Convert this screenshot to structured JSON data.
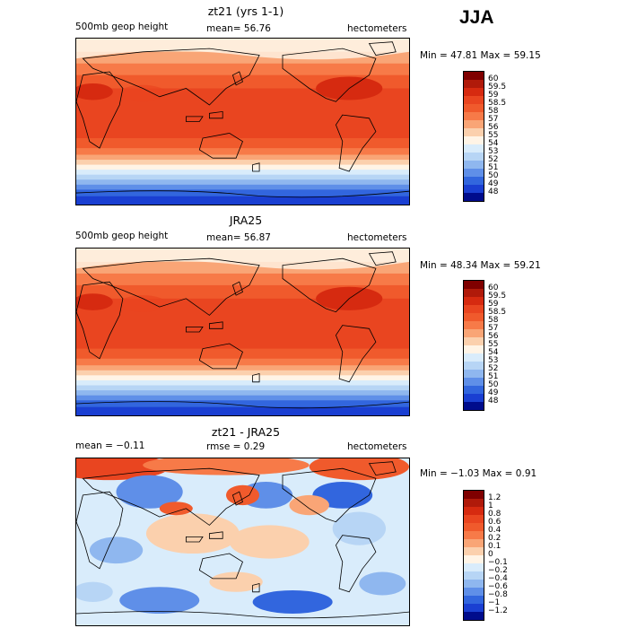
{
  "season": "JJA",
  "panels": [
    {
      "id": "model",
      "title": "zt21 (yrs 1-1)",
      "left_text": "500mb geop height",
      "stat_text": "mean=  56.76",
      "units": "hectometers",
      "min_text": "Min =  47.81",
      "max_text": "Max =  59.15",
      "kind": "field",
      "colorbar": {
        "labels": [
          "60",
          "59.5",
          "59",
          "58.5",
          "58",
          "57",
          "56",
          "55",
          "54",
          "53",
          "52",
          "51",
          "50",
          "49",
          "48"
        ],
        "colors": [
          "#7f0000",
          "#b01a0a",
          "#d62a10",
          "#e94520",
          "#f05a2c",
          "#f77a48",
          "#f9a576",
          "#fbd0ad",
          "#fff4e6",
          "#d9ecfb",
          "#b7d5f5",
          "#8fb7ef",
          "#5f8fe8",
          "#3266de",
          "#1a3fd2",
          "#000c8c"
        ]
      }
    },
    {
      "id": "obs",
      "title": "JRA25",
      "left_text": "500mb geop height",
      "stat_text": "mean=  56.87",
      "units": "hectometers",
      "min_text": "Min =  48.34",
      "max_text": "Max =  59.21",
      "kind": "field",
      "colorbar": {
        "labels": [
          "60",
          "59.5",
          "59",
          "58.5",
          "58",
          "57",
          "56",
          "55",
          "54",
          "53",
          "52",
          "51",
          "50",
          "49",
          "48"
        ],
        "colors": [
          "#7f0000",
          "#b01a0a",
          "#d62a10",
          "#e94520",
          "#f05a2c",
          "#f77a48",
          "#f9a576",
          "#fbd0ad",
          "#fff4e6",
          "#d9ecfb",
          "#b7d5f5",
          "#8fb7ef",
          "#5f8fe8",
          "#3266de",
          "#1a3fd2",
          "#000c8c"
        ]
      }
    },
    {
      "id": "diff",
      "title": "zt21 - JRA25",
      "left_text": "mean =  −0.11",
      "stat_text": "rmse =    0.29",
      "units": "hectometers",
      "min_text": "Min = −1.03",
      "max_text": "Max =    0.91",
      "kind": "diff",
      "colorbar": {
        "labels": [
          "1.2",
          "1",
          "0.8",
          "0.6",
          "0.4",
          "0.2",
          "0.1",
          "0",
          "−0.1",
          "−0.2",
          "−0.4",
          "−0.6",
          "−0.8",
          "−1",
          "−1.2"
        ],
        "colors": [
          "#7f0000",
          "#b01a0a",
          "#d62a10",
          "#e94520",
          "#f05a2c",
          "#f77a48",
          "#f9a576",
          "#fbd0ad",
          "#fff4e6",
          "#d9ecfb",
          "#b7d5f5",
          "#8fb7ef",
          "#5f8fe8",
          "#3266de",
          "#1a3fd2",
          "#000c8c"
        ]
      }
    }
  ]
}
